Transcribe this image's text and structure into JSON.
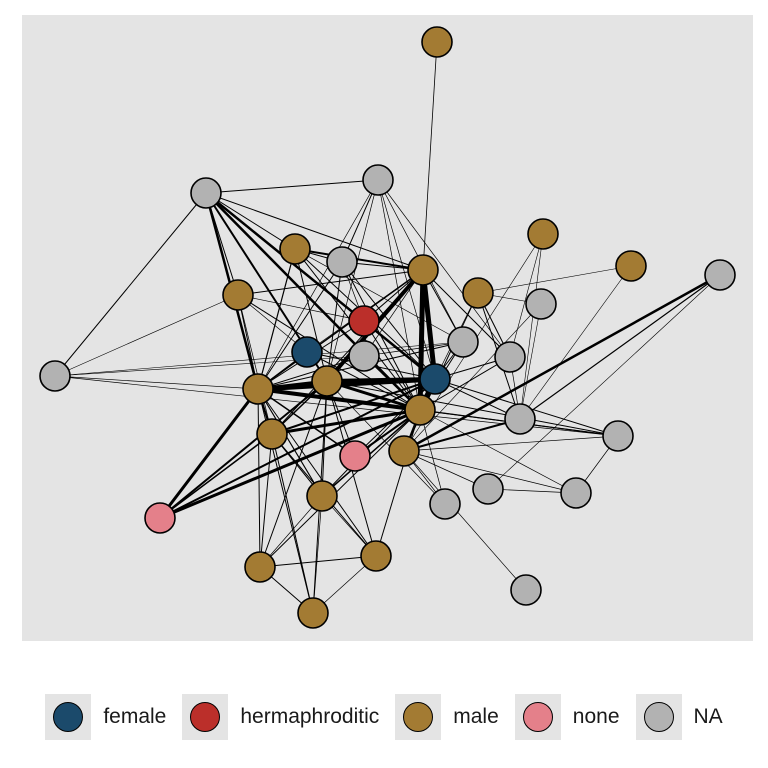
{
  "legend": {
    "items": [
      {
        "key": "female",
        "label": "female",
        "color": "#1b4a6b"
      },
      {
        "key": "hermaphroditic",
        "label": "hermaphroditic",
        "color": "#bb2f2a"
      },
      {
        "key": "male",
        "label": "male",
        "color": "#a37b33"
      },
      {
        "key": "none",
        "label": "none",
        "color": "#e4808a"
      },
      {
        "key": "NA",
        "label": "NA",
        "color": "#b2b2b2"
      }
    ]
  },
  "graph": {
    "background": "#e4e4e4",
    "nodes": [
      {
        "id": 0,
        "group": "male"
      },
      {
        "id": 1,
        "group": "NA"
      },
      {
        "id": 2,
        "group": "NA"
      },
      {
        "id": 3,
        "group": "male"
      },
      {
        "id": 4,
        "group": "NA"
      },
      {
        "id": 5,
        "group": "male"
      },
      {
        "id": 6,
        "group": "NA"
      },
      {
        "id": 7,
        "group": "male"
      },
      {
        "id": 8,
        "group": "male"
      },
      {
        "id": 9,
        "group": "male"
      },
      {
        "id": 10,
        "group": "NA"
      },
      {
        "id": 11,
        "group": "male"
      },
      {
        "id": 12,
        "group": "hermaphroditic"
      },
      {
        "id": 13,
        "group": "female"
      },
      {
        "id": 14,
        "group": "NA"
      },
      {
        "id": 15,
        "group": "NA"
      },
      {
        "id": 16,
        "group": "NA"
      },
      {
        "id": 17,
        "group": "NA"
      },
      {
        "id": 18,
        "group": "male"
      },
      {
        "id": 19,
        "group": "male"
      },
      {
        "id": 20,
        "group": "female"
      },
      {
        "id": 21,
        "group": "male"
      },
      {
        "id": 22,
        "group": "male"
      },
      {
        "id": 23,
        "group": "male"
      },
      {
        "id": 24,
        "group": "NA"
      },
      {
        "id": 25,
        "group": "none"
      },
      {
        "id": 26,
        "group": "male"
      },
      {
        "id": 27,
        "group": "NA"
      },
      {
        "id": 28,
        "group": "NA"
      },
      {
        "id": 29,
        "group": "NA"
      },
      {
        "id": 30,
        "group": "NA"
      },
      {
        "id": 31,
        "group": "none"
      },
      {
        "id": 32,
        "group": "male"
      },
      {
        "id": 33,
        "group": "male"
      },
      {
        "id": 34,
        "group": "male"
      },
      {
        "id": 35,
        "group": "NA"
      }
    ],
    "edges": [
      {
        "s": 2,
        "t": 4,
        "w": 1
      },
      {
        "s": 2,
        "t": 5,
        "w": 1
      },
      {
        "s": 2,
        "t": 8,
        "w": 1
      },
      {
        "s": 2,
        "t": 18,
        "w": 2.5
      },
      {
        "s": 2,
        "t": 20,
        "w": 2.5
      },
      {
        "s": 2,
        "t": 19,
        "w": 2.5
      },
      {
        "s": 2,
        "t": 21,
        "w": 2
      },
      {
        "s": 2,
        "t": 12,
        "w": 1.5
      },
      {
        "s": 2,
        "t": 7,
        "w": 1
      },
      {
        "s": 4,
        "t": 6,
        "w": 1
      },
      {
        "s": 4,
        "t": 18,
        "w": 0.7
      },
      {
        "s": 4,
        "t": 19,
        "w": 0.7
      },
      {
        "s": 4,
        "t": 20,
        "w": 0.7
      },
      {
        "s": 4,
        "t": 21,
        "w": 0.7
      },
      {
        "s": 4,
        "t": 14,
        "w": 0.7
      },
      {
        "s": 4,
        "t": 16,
        "w": 0.7
      },
      {
        "s": 0,
        "t": 8,
        "w": 0.8
      },
      {
        "s": 5,
        "t": 8,
        "w": 2
      },
      {
        "s": 5,
        "t": 6,
        "w": 1
      },
      {
        "s": 5,
        "t": 18,
        "w": 1.2
      },
      {
        "s": 5,
        "t": 19,
        "w": 1
      },
      {
        "s": 5,
        "t": 20,
        "w": 1
      },
      {
        "s": 5,
        "t": 14,
        "w": 0.7
      },
      {
        "s": 5,
        "t": 21,
        "w": 1
      },
      {
        "s": 6,
        "t": 8,
        "w": 1
      },
      {
        "s": 6,
        "t": 18,
        "w": 1
      },
      {
        "s": 6,
        "t": 19,
        "w": 1
      },
      {
        "s": 6,
        "t": 20,
        "w": 1
      },
      {
        "s": 6,
        "t": 21,
        "w": 1
      },
      {
        "s": 6,
        "t": 12,
        "w": 0.7
      },
      {
        "s": 7,
        "t": 18,
        "w": 1
      },
      {
        "s": 7,
        "t": 19,
        "w": 1
      },
      {
        "s": 7,
        "t": 12,
        "w": 0.7
      },
      {
        "s": 7,
        "t": 13,
        "w": 0.7
      },
      {
        "s": 7,
        "t": 22,
        "w": 0.7
      },
      {
        "s": 7,
        "t": 8,
        "w": 1
      },
      {
        "s": 8,
        "t": 18,
        "w": 1.5
      },
      {
        "s": 8,
        "t": 19,
        "w": 5
      },
      {
        "s": 8,
        "t": 20,
        "w": 5
      },
      {
        "s": 8,
        "t": 21,
        "w": 4
      },
      {
        "s": 8,
        "t": 12,
        "w": 1
      },
      {
        "s": 8,
        "t": 16,
        "w": 1
      },
      {
        "s": 8,
        "t": 15,
        "w": 0.7
      },
      {
        "s": 8,
        "t": 14,
        "w": 1
      },
      {
        "s": 8,
        "t": 13,
        "w": 0.7
      },
      {
        "s": 8,
        "t": 22,
        "w": 1
      },
      {
        "s": 9,
        "t": 11,
        "w": 0.6
      },
      {
        "s": 9,
        "t": 17,
        "w": 0.6
      },
      {
        "s": 3,
        "t": 16,
        "w": 0.6
      },
      {
        "s": 3,
        "t": 17,
        "w": 0.6
      },
      {
        "s": 3,
        "t": 23,
        "w": 0.6
      },
      {
        "s": 10,
        "t": 11,
        "w": 0.6
      },
      {
        "s": 10,
        "t": 17,
        "w": 0.6
      },
      {
        "s": 10,
        "t": 23,
        "w": 0.6
      },
      {
        "s": 11,
        "t": 17,
        "w": 1
      },
      {
        "s": 11,
        "t": 23,
        "w": 1
      },
      {
        "s": 11,
        "t": 16,
        "w": 1
      },
      {
        "s": 11,
        "t": 20,
        "w": 0.7
      },
      {
        "s": 1,
        "t": 17,
        "w": 1.2
      },
      {
        "s": 1,
        "t": 23,
        "w": 2.5
      },
      {
        "s": 1,
        "t": 28,
        "w": 0.6
      },
      {
        "s": 12,
        "t": 18,
        "w": 1
      },
      {
        "s": 12,
        "t": 20,
        "w": 1
      },
      {
        "s": 12,
        "t": 19,
        "w": 1
      },
      {
        "s": 13,
        "t": 18,
        "w": 1
      },
      {
        "s": 13,
        "t": 20,
        "w": 1
      },
      {
        "s": 13,
        "t": 19,
        "w": 1
      },
      {
        "s": 15,
        "t": 14,
        "w": 0.7
      },
      {
        "s": 15,
        "t": 18,
        "w": 1
      },
      {
        "s": 15,
        "t": 19,
        "w": 1
      },
      {
        "s": 16,
        "t": 17,
        "w": 0.7
      },
      {
        "s": 16,
        "t": 20,
        "w": 1
      },
      {
        "s": 16,
        "t": 19,
        "w": 1
      },
      {
        "s": 16,
        "t": 11,
        "w": 0.7
      },
      {
        "s": 14,
        "t": 18,
        "w": 1
      },
      {
        "s": 14,
        "t": 20,
        "w": 1
      },
      {
        "s": 14,
        "t": 19,
        "w": 1
      },
      {
        "s": 17,
        "t": 23,
        "w": 2
      },
      {
        "s": 17,
        "t": 20,
        "w": 1
      },
      {
        "s": 18,
        "t": 20,
        "w": 5
      },
      {
        "s": 18,
        "t": 19,
        "w": 4
      },
      {
        "s": 18,
        "t": 21,
        "w": 3
      },
      {
        "s": 18,
        "t": 22,
        "w": 2
      },
      {
        "s": 18,
        "t": 24,
        "w": 1
      },
      {
        "s": 18,
        "t": 25,
        "w": 1.5
      },
      {
        "s": 18,
        "t": 26,
        "w": 1.2
      },
      {
        "s": 18,
        "t": 31,
        "w": 3
      },
      {
        "s": 18,
        "t": 34,
        "w": 1
      },
      {
        "s": 18,
        "t": 33,
        "w": 1
      },
      {
        "s": 18,
        "t": 32,
        "w": 1
      },
      {
        "s": 19,
        "t": 20,
        "w": 5
      },
      {
        "s": 19,
        "t": 21,
        "w": 3
      },
      {
        "s": 19,
        "t": 22,
        "w": 3
      },
      {
        "s": 19,
        "t": 24,
        "w": 1.2
      },
      {
        "s": 19,
        "t": 25,
        "w": 2
      },
      {
        "s": 19,
        "t": 26,
        "w": 1.5
      },
      {
        "s": 19,
        "t": 31,
        "w": 3
      },
      {
        "s": 19,
        "t": 32,
        "w": 1
      },
      {
        "s": 19,
        "t": 33,
        "w": 1
      },
      {
        "s": 19,
        "t": 23,
        "w": 1
      },
      {
        "s": 19,
        "t": 29,
        "w": 0.7
      },
      {
        "s": 19,
        "t": 27,
        "w": 0.7
      },
      {
        "s": 20,
        "t": 21,
        "w": 4
      },
      {
        "s": 20,
        "t": 22,
        "w": 2
      },
      {
        "s": 20,
        "t": 26,
        "w": 1
      },
      {
        "s": 20,
        "t": 25,
        "w": 1
      },
      {
        "s": 20,
        "t": 31,
        "w": 2
      },
      {
        "s": 20,
        "t": 23,
        "w": 1
      },
      {
        "s": 20,
        "t": 24,
        "w": 1
      },
      {
        "s": 21,
        "t": 22,
        "w": 1.5
      },
      {
        "s": 21,
        "t": 31,
        "w": 2
      },
      {
        "s": 21,
        "t": 24,
        "w": 1
      },
      {
        "s": 21,
        "t": 25,
        "w": 1
      },
      {
        "s": 21,
        "t": 26,
        "w": 1
      },
      {
        "s": 21,
        "t": 27,
        "w": 0.7
      },
      {
        "s": 21,
        "t": 32,
        "w": 1
      },
      {
        "s": 21,
        "t": 33,
        "w": 1
      },
      {
        "s": 21,
        "t": 34,
        "w": 1
      },
      {
        "s": 22,
        "t": 31,
        "w": 1.5
      },
      {
        "s": 22,
        "t": 32,
        "w": 1
      },
      {
        "s": 22,
        "t": 33,
        "w": 1
      },
      {
        "s": 22,
        "t": 34,
        "w": 1
      },
      {
        "s": 22,
        "t": 26,
        "w": 1
      },
      {
        "s": 23,
        "t": 24,
        "w": 0.7
      },
      {
        "s": 23,
        "t": 27,
        "w": 0.7
      },
      {
        "s": 23,
        "t": 28,
        "w": 0.7
      },
      {
        "s": 23,
        "t": 29,
        "w": 0.7
      },
      {
        "s": 23,
        "t": 30,
        "w": 0.7
      },
      {
        "s": 24,
        "t": 29,
        "w": 0.7
      },
      {
        "s": 24,
        "t": 35,
        "w": 0.7
      },
      {
        "s": 26,
        "t": 32,
        "w": 0.7
      },
      {
        "s": 26,
        "t": 34,
        "w": 0.7
      },
      {
        "s": 26,
        "t": 33,
        "w": 0.7
      },
      {
        "s": 28,
        "t": 29,
        "w": 0.7
      },
      {
        "s": 32,
        "t": 33,
        "w": 1
      },
      {
        "s": 32,
        "t": 34,
        "w": 1
      },
      {
        "s": 33,
        "t": 34,
        "w": 0.7
      }
    ]
  }
}
